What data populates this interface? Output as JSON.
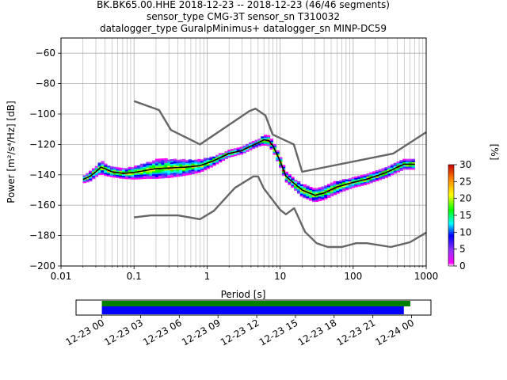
{
  "chart_data": [
    {
      "type": "heatmap",
      "title_lines": [
        "BK.BK65.00.HHE   2018-12-23 -- 2018-12-23  (46/46 segments)",
        "sensor_type CMG-3T sensor_sn T310032",
        "datalogger_type GuralpMinimus+ datalogger_sn MINP-DC59"
      ],
      "xlabel": "Period [s]",
      "ylabel": "Power [m²/s⁴/Hz] [dB]",
      "xscale": "log",
      "xlim": [
        0.01,
        1000
      ],
      "ylim": [
        -200,
        -50
      ],
      "xticks": [
        {
          "value": 0.01,
          "label": "0.01"
        },
        {
          "value": 0.1,
          "label": "0.1"
        },
        {
          "value": 1,
          "label": "1"
        },
        {
          "value": 10,
          "label": "10"
        },
        {
          "value": 100,
          "label": "100"
        },
        {
          "value": 1000,
          "label": "1000"
        }
      ],
      "yticks": [
        -200,
        -180,
        -160,
        -140,
        -120,
        -100,
        -80,
        -60
      ],
      "grid": true,
      "colorbar": {
        "label": "[%]",
        "min": 0,
        "max": 30,
        "ticks": [
          0,
          5,
          10,
          15,
          20,
          25,
          30
        ]
      },
      "series": [
        {
          "name": "NHNM",
          "color": "#666666",
          "points": [
            [
              0.1,
              -91.5
            ],
            [
              0.22,
              -97.4
            ],
            [
              0.32,
              -110.5
            ],
            [
              0.8,
              -120
            ],
            [
              3.8,
              -98
            ],
            [
              4.6,
              -96.5
            ],
            [
              6.3,
              -101
            ],
            [
              7.9,
              -113.5
            ],
            [
              15.4,
              -120
            ],
            [
              20,
              -138
            ],
            [
              354.8,
              -126
            ],
            [
              1000,
              -112
            ]
          ]
        },
        {
          "name": "NLNM",
          "color": "#666666",
          "points": [
            [
              0.1,
              -168
            ],
            [
              0.17,
              -166.7
            ],
            [
              0.4,
              -166.7
            ],
            [
              0.8,
              -169.2
            ],
            [
              1.24,
              -163.7
            ],
            [
              2.4,
              -148.6
            ],
            [
              4.3,
              -141.1
            ],
            [
              5,
              -141.1
            ],
            [
              6,
              -149
            ],
            [
              10,
              -163
            ],
            [
              12,
              -166
            ],
            [
              15.6,
              -162
            ],
            [
              21.9,
              -177.5
            ],
            [
              31.6,
              -185
            ],
            [
              45,
              -187.5
            ],
            [
              70,
              -187.5
            ],
            [
              110,
              -185
            ],
            [
              154,
              -185
            ],
            [
              328,
              -187.5
            ],
            [
              600,
              -184.4
            ],
            [
              1000,
              -178
            ]
          ]
        },
        {
          "name": "mode",
          "color": "#000000",
          "points": [
            [
              0.02,
              -143
            ],
            [
              0.025,
              -141
            ],
            [
              0.03,
              -138
            ],
            [
              0.035,
              -135
            ],
            [
              0.04,
              -136
            ],
            [
              0.05,
              -138
            ],
            [
              0.07,
              -139
            ],
            [
              0.1,
              -138.5
            ],
            [
              0.15,
              -137
            ],
            [
              0.2,
              -136
            ],
            [
              0.3,
              -135.5
            ],
            [
              0.5,
              -135
            ],
            [
              0.8,
              -134
            ],
            [
              1.2,
              -131
            ],
            [
              2,
              -126
            ],
            [
              3,
              -124
            ],
            [
              4,
              -121
            ],
            [
              5,
              -119
            ],
            [
              6,
              -117
            ],
            [
              7,
              -117.5
            ],
            [
              8,
              -121
            ],
            [
              10,
              -131
            ],
            [
              12,
              -141
            ],
            [
              15,
              -145
            ],
            [
              20,
              -150
            ],
            [
              25,
              -152
            ],
            [
              30,
              -153.5
            ],
            [
              40,
              -152
            ],
            [
              60,
              -148
            ],
            [
              100,
              -145
            ],
            [
              150,
              -143
            ],
            [
              200,
              -141
            ],
            [
              300,
              -138
            ],
            [
              400,
              -135
            ],
            [
              500,
              -133
            ],
            [
              700,
              -133
            ]
          ]
        }
      ],
      "density_band": [
        [
          0.02,
          -143,
          2
        ],
        [
          0.025,
          -141,
          3
        ],
        [
          0.03,
          -138,
          3
        ],
        [
          0.035,
          -135,
          4
        ],
        [
          0.04,
          -136,
          4
        ],
        [
          0.05,
          -138,
          3
        ],
        [
          0.07,
          -139,
          3
        ],
        [
          0.1,
          -138.5,
          4
        ],
        [
          0.15,
          -137,
          5
        ],
        [
          0.2,
          -136,
          6
        ],
        [
          0.3,
          -135.5,
          6
        ],
        [
          0.5,
          -135,
          5
        ],
        [
          0.8,
          -134,
          4
        ],
        [
          1.2,
          -131,
          3
        ],
        [
          2,
          -126,
          2
        ],
        [
          3,
          -124,
          2
        ],
        [
          4,
          -121,
          2
        ],
        [
          5,
          -119,
          2
        ],
        [
          6,
          -117,
          3
        ],
        [
          7,
          -117.5,
          3
        ],
        [
          8,
          -121,
          3
        ],
        [
          10,
          -131,
          3
        ],
        [
          12,
          -141,
          3
        ],
        [
          15,
          -145,
          3
        ],
        [
          20,
          -150,
          4
        ],
        [
          25,
          -152,
          4
        ],
        [
          30,
          -153.5,
          4
        ],
        [
          40,
          -152,
          4
        ],
        [
          60,
          -148,
          4
        ],
        [
          100,
          -145,
          3
        ],
        [
          150,
          -143,
          3
        ],
        [
          200,
          -141,
          3
        ],
        [
          300,
          -138,
          3
        ],
        [
          400,
          -135,
          3
        ],
        [
          500,
          -133,
          3
        ],
        [
          700,
          -133,
          3
        ]
      ]
    },
    {
      "type": "bar",
      "title": "",
      "xlabel": "",
      "xticks": [
        "12-23 00",
        "12-23 03",
        "12-23 06",
        "12-23 09",
        "12-23 12",
        "12-23 15",
        "12-23 18",
        "12-23 21",
        "12-24 00"
      ],
      "xlim_hours": [
        -2,
        25.5
      ],
      "series": [
        {
          "color": "#008000",
          "start_hour": 0,
          "end_hour": 23.9
        },
        {
          "color": "#0000ff",
          "start_hour": 0,
          "end_hour": 23.4
        }
      ]
    }
  ]
}
